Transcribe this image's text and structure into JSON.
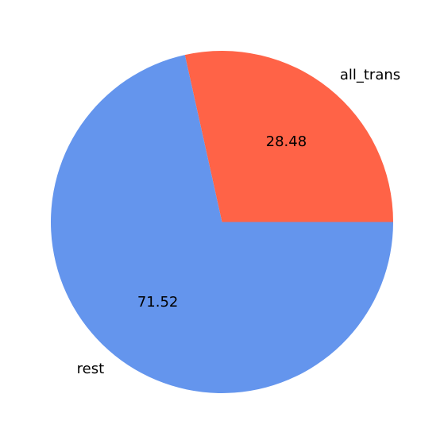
{
  "chart_data": {
    "type": "pie",
    "categories": [
      "all_trans",
      "rest"
    ],
    "values": [
      28.48,
      71.52
    ],
    "value_labels": [
      "28.48",
      "71.52"
    ],
    "colors": [
      "#ff6347",
      "#6495ed"
    ],
    "start_angle_deg": 0,
    "direction": "counterclockwise",
    "legend": "none"
  }
}
